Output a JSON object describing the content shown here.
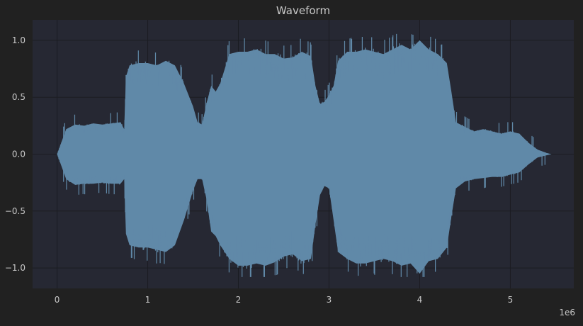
{
  "chart_data": {
    "type": "area",
    "title": "Waveform",
    "xlabel": "",
    "ylabel": "",
    "x_scale_label": "1e6",
    "xlim": [
      -270000,
      5700000
    ],
    "ylim": [
      -1.18,
      1.18
    ],
    "grid": true,
    "xticks": [
      {
        "value": 0,
        "label": "0"
      },
      {
        "value": 1000000,
        "label": "1"
      },
      {
        "value": 2000000,
        "label": "2"
      },
      {
        "value": 3000000,
        "label": "3"
      },
      {
        "value": 4000000,
        "label": "4"
      },
      {
        "value": 5000000,
        "label": "5"
      }
    ],
    "yticks": [
      {
        "value": 1.0,
        "label": "1.0"
      },
      {
        "value": 0.5,
        "label": "0.5"
      },
      {
        "value": 0.0,
        "label": "0.0"
      },
      {
        "value": -0.5,
        "label": "−0.5"
      },
      {
        "value": -1.0,
        "label": "−1.0"
      }
    ],
    "series": [
      {
        "color": "#6089a8",
        "x": [
          0,
          100000,
          200000,
          300000,
          400000,
          500000,
          600000,
          700000,
          740000,
          760000,
          800000,
          900000,
          1000000,
          1100000,
          1200000,
          1300000,
          1400000,
          1500000,
          1550000,
          1600000,
          1650000,
          1700000,
          1750000,
          1800000,
          1900000,
          2000000,
          2100000,
          2200000,
          2300000,
          2400000,
          2500000,
          2600000,
          2700000,
          2800000,
          2850000,
          2900000,
          2950000,
          3000000,
          3050000,
          3100000,
          3200000,
          3300000,
          3400000,
          3500000,
          3600000,
          3700000,
          3800000,
          3900000,
          4000000,
          4100000,
          4200000,
          4300000,
          4350000,
          4400000,
          4500000,
          4600000,
          4700000,
          4800000,
          4900000,
          5000000,
          5100000,
          5200000,
          5300000,
          5400000,
          5450000
        ],
        "upper": [
          0.0,
          0.22,
          0.26,
          0.25,
          0.27,
          0.26,
          0.27,
          0.28,
          0.22,
          0.68,
          0.78,
          0.8,
          0.8,
          0.78,
          0.82,
          0.78,
          0.62,
          0.42,
          0.28,
          0.26,
          0.45,
          0.6,
          0.55,
          0.62,
          0.88,
          0.9,
          0.9,
          0.92,
          0.88,
          0.88,
          0.84,
          0.85,
          0.9,
          0.86,
          0.6,
          0.44,
          0.46,
          0.52,
          0.6,
          0.82,
          0.9,
          0.9,
          0.92,
          0.9,
          0.88,
          0.92,
          0.96,
          0.92,
          1.0,
          0.92,
          0.88,
          0.8,
          0.55,
          0.28,
          0.24,
          0.2,
          0.22,
          0.2,
          0.18,
          0.2,
          0.18,
          0.1,
          0.04,
          0.01,
          0.0
        ],
        "lower": [
          0.0,
          -0.22,
          -0.27,
          -0.26,
          -0.26,
          -0.25,
          -0.26,
          -0.26,
          -0.22,
          -0.7,
          -0.8,
          -0.82,
          -0.82,
          -0.84,
          -0.86,
          -0.8,
          -0.58,
          -0.32,
          -0.22,
          -0.22,
          -0.4,
          -0.68,
          -0.72,
          -0.8,
          -0.92,
          -0.98,
          -0.98,
          -0.96,
          -0.98,
          -0.95,
          -0.9,
          -0.88,
          -0.94,
          -0.92,
          -0.62,
          -0.36,
          -0.28,
          -0.3,
          -0.58,
          -0.86,
          -0.92,
          -0.96,
          -0.96,
          -0.94,
          -0.92,
          -0.94,
          -0.98,
          -0.96,
          -1.05,
          -0.94,
          -0.92,
          -0.82,
          -0.55,
          -0.3,
          -0.24,
          -0.22,
          -0.21,
          -0.2,
          -0.2,
          -0.18,
          -0.16,
          -0.09,
          -0.03,
          -0.01,
          0.0
        ]
      }
    ]
  }
}
